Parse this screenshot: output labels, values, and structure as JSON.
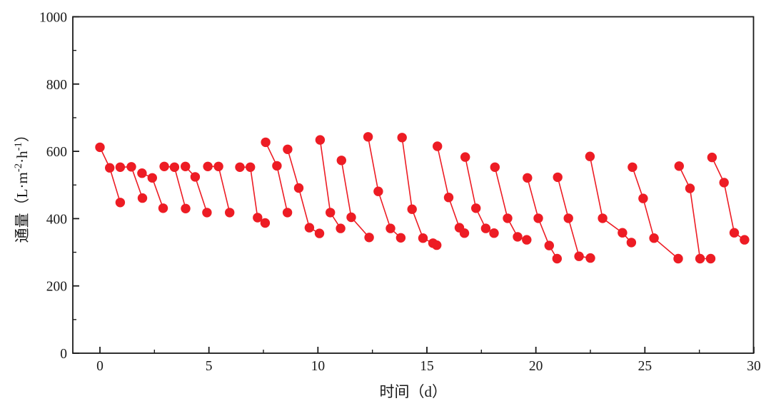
{
  "chart_data": {
    "type": "line",
    "title": "",
    "xlabel": "时间（d）",
    "ylabel": "通量（L·m⁻²·h⁻¹）",
    "ylabel_parts": [
      {
        "kind": "text",
        "value": "通量（L·m"
      },
      {
        "kind": "sup",
        "value": "-2"
      },
      {
        "kind": "text",
        "value": "·h"
      },
      {
        "kind": "sup",
        "value": "-1"
      },
      {
        "kind": "text",
        "value": "）"
      }
    ],
    "xlim": [
      -1.25,
      30
    ],
    "ylim": [
      0,
      1000
    ],
    "x_major_ticks": [
      0,
      5,
      10,
      15,
      20,
      25,
      30
    ],
    "x_minor_ticks": [
      2.5,
      7.5,
      12.5,
      17.5,
      22.5,
      27.5
    ],
    "y_major_ticks": [
      0,
      200,
      400,
      600,
      800,
      1000
    ],
    "y_minor_ticks": [
      100,
      300,
      500,
      700,
      900
    ],
    "grid": "off",
    "legend": "none",
    "series_name": "通量",
    "marker_color": "#ed1c24",
    "line_color": "#ed1c24",
    "axis_color": "#1a1a1a",
    "segments": [
      [
        [
          0.0,
          612
        ],
        [
          0.45,
          551
        ],
        [
          0.93,
          448
        ]
      ],
      [
        [
          0.93,
          553
        ],
        [
          1.44,
          554
        ],
        [
          1.95,
          461
        ]
      ],
      [
        [
          1.93,
          535
        ],
        [
          2.4,
          521
        ],
        [
          2.9,
          431
        ]
      ],
      [
        [
          2.95,
          555
        ],
        [
          3.42,
          553
        ],
        [
          3.93,
          430
        ]
      ],
      [
        [
          3.92,
          555
        ],
        [
          4.37,
          524
        ],
        [
          4.91,
          418
        ]
      ],
      [
        [
          4.95,
          555
        ],
        [
          5.44,
          555
        ],
        [
          5.95,
          418
        ]
      ],
      [
        [
          6.42,
          553
        ],
        [
          6.9,
          553
        ],
        [
          7.23,
          403
        ],
        [
          7.58,
          387
        ]
      ],
      [
        [
          7.6,
          627
        ],
        [
          8.12,
          557
        ],
        [
          8.6,
          418
        ]
      ],
      [
        [
          8.61,
          606
        ],
        [
          9.12,
          491
        ],
        [
          9.61,
          373
        ],
        [
          10.07,
          356
        ]
      ],
      [
        [
          10.1,
          634
        ],
        [
          10.57,
          418
        ],
        [
          11.04,
          371
        ]
      ],
      [
        [
          11.08,
          573
        ],
        [
          11.53,
          404
        ],
        [
          12.35,
          344
        ]
      ],
      [
        [
          12.3,
          643
        ],
        [
          12.77,
          481
        ],
        [
          13.33,
          371
        ],
        [
          13.8,
          343
        ]
      ],
      [
        [
          13.86,
          641
        ],
        [
          14.32,
          428
        ],
        [
          14.82,
          342
        ],
        [
          15.28,
          327
        ],
        [
          15.45,
          321
        ]
      ],
      [
        [
          15.48,
          615
        ],
        [
          16.0,
          463
        ],
        [
          16.49,
          373
        ],
        [
          16.72,
          357
        ]
      ],
      [
        [
          16.76,
          583
        ],
        [
          17.25,
          431
        ],
        [
          17.7,
          371
        ],
        [
          18.08,
          357
        ]
      ],
      [
        [
          18.12,
          553
        ],
        [
          18.7,
          401
        ],
        [
          19.16,
          346
        ],
        [
          19.58,
          337
        ]
      ],
      [
        [
          19.61,
          521
        ],
        [
          20.11,
          401
        ],
        [
          20.61,
          320
        ],
        [
          20.97,
          281
        ]
      ],
      [
        [
          21.0,
          523
        ],
        [
          21.49,
          401
        ],
        [
          21.98,
          288
        ],
        [
          22.5,
          283
        ]
      ],
      [
        [
          22.48,
          585
        ],
        [
          23.06,
          401
        ],
        [
          23.97,
          358
        ],
        [
          24.38,
          329
        ]
      ],
      [
        [
          24.43,
          553
        ],
        [
          24.92,
          460
        ],
        [
          25.42,
          342
        ],
        [
          26.53,
          281
        ]
      ],
      [
        [
          26.57,
          556
        ],
        [
          27.07,
          490
        ],
        [
          27.53,
          281
        ],
        [
          28.02,
          281
        ]
      ],
      [
        [
          28.08,
          582
        ],
        [
          28.63,
          507
        ],
        [
          29.1,
          358
        ],
        [
          29.57,
          337
        ]
      ]
    ]
  }
}
